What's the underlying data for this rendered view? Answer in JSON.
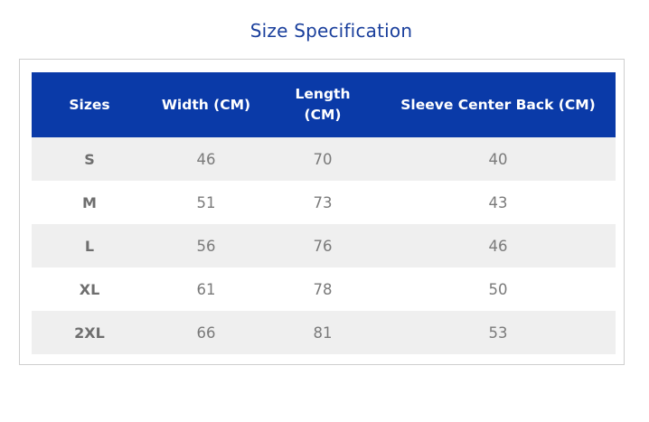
{
  "title": "Size Specification",
  "table": {
    "headers": [
      "Sizes",
      "Width (CM)",
      "Length (CM)",
      "Sleeve Center Back (CM)"
    ],
    "rows": [
      [
        "S",
        "46",
        "70",
        "40"
      ],
      [
        "M",
        "51",
        "73",
        "43"
      ],
      [
        "L",
        "56",
        "76",
        "46"
      ],
      [
        "XL",
        "61",
        "78",
        "50"
      ],
      [
        "2XL",
        "66",
        "81",
        "53"
      ]
    ]
  },
  "colors": {
    "title": "#1a3f9c",
    "header_bg": "#0a3aa8",
    "row_shade": "#efefef"
  }
}
